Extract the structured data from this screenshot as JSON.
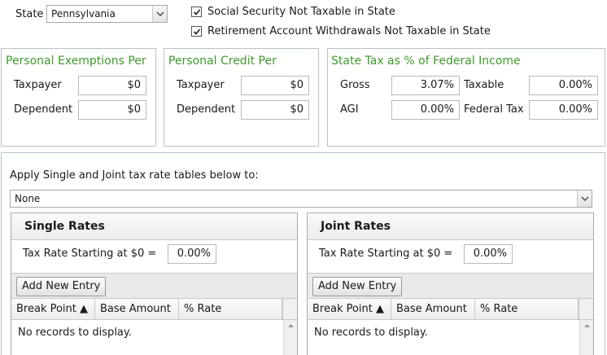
{
  "state": {
    "label": "State",
    "selected": "Pennsylvania"
  },
  "checks": {
    "social_security": {
      "label": "Social Security Not Taxable in State",
      "checked": true
    },
    "retirement": {
      "label": "Retirement Account Withdrawals Not Taxable in State",
      "checked": true
    }
  },
  "exemptions": {
    "title": "Personal Exemptions Per",
    "taxpayer_label": "Taxpayer",
    "taxpayer_value": "$0",
    "dependent_label": "Dependent",
    "dependent_value": "$0"
  },
  "credit": {
    "title": "Personal Credit Per",
    "taxpayer_label": "Taxpayer",
    "taxpayer_value": "$0",
    "dependent_label": "Dependent",
    "dependent_value": "$0"
  },
  "state_tax": {
    "title": "State Tax as % of Federal Income",
    "gross_label": "Gross",
    "gross_value": "3.07%",
    "agi_label": "AGI",
    "agi_value": "0.00%",
    "taxable_label": "Taxable",
    "taxable_value": "0.00%",
    "federal_label": "Federal Tax",
    "federal_value": "0.00%"
  },
  "apply": {
    "label": "Apply Single and Joint tax rate tables below to:",
    "selected": "None"
  },
  "single": {
    "title": "Single Rates",
    "rate_label": "Tax Rate Starting at $0 =",
    "rate_value": "0.00%",
    "add_button": "Add New Entry",
    "columns": [
      "Break Point ▲",
      "Base Amount",
      "% Rate"
    ],
    "empty": "No records to display."
  },
  "joint": {
    "title": "Joint Rates",
    "rate_label": "Tax Rate Starting at $0 =",
    "rate_value": "0.00%",
    "add_button": "Add New Entry",
    "columns": [
      "Break Point ▲",
      "Base Amount",
      "% Rate"
    ],
    "empty": "No records to display."
  },
  "colors": {
    "accent_green": "#3f9a2c",
    "border": "#b9c3cc"
  }
}
